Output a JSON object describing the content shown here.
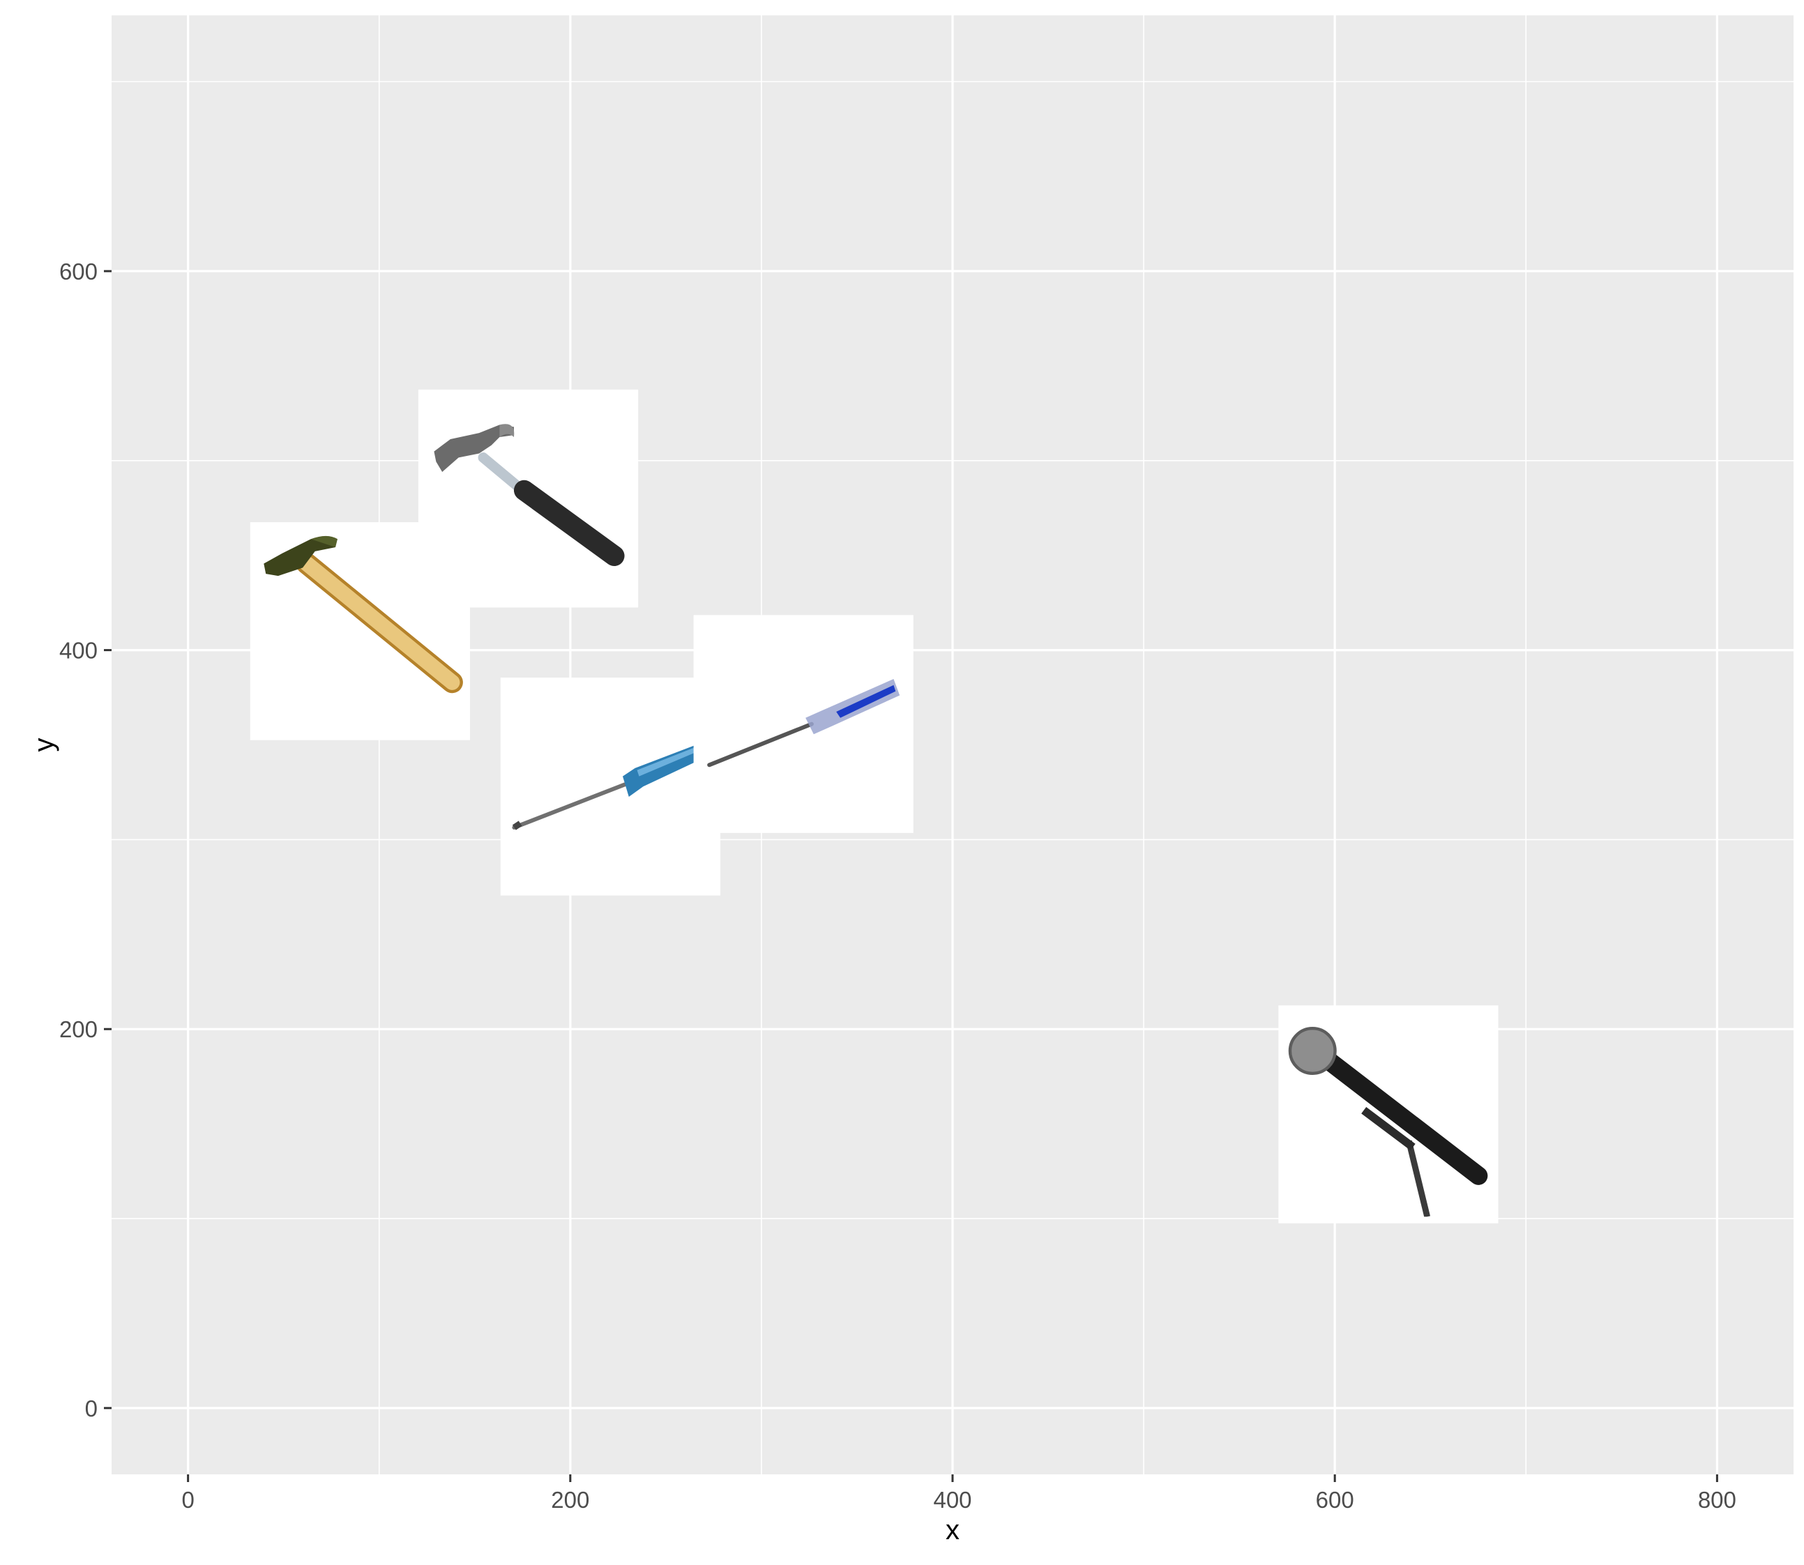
{
  "chart_data": {
    "type": "scatter",
    "xlabel": "x",
    "ylabel": "y",
    "xlim": [
      -40,
      840
    ],
    "ylim": [
      -35,
      735
    ],
    "x_ticks": [
      0,
      200,
      400,
      600,
      800
    ],
    "y_ticks": [
      0,
      200,
      400,
      600
    ],
    "x_tick_labels": [
      "0",
      "200",
      "400",
      "600",
      "800"
    ],
    "y_tick_labels": [
      "0",
      "200",
      "400",
      "600"
    ],
    "grid": true,
    "legend": "none",
    "points": [
      {
        "icon": "wooden-hammer-icon",
        "x": 90,
        "y": 410
      },
      {
        "icon": "steel-hammer-icon",
        "x": 178,
        "y": 480
      },
      {
        "icon": "blue-screwdriver-icon",
        "x": 221,
        "y": 328
      },
      {
        "icon": "clear-screwdriver-icon",
        "x": 322,
        "y": 361
      },
      {
        "icon": "microphone-icon",
        "x": 628,
        "y": 155
      }
    ],
    "image_size_units": 115,
    "colors": {
      "panel_background": "#ebebeb",
      "grid": "#ffffff",
      "tick": "#333333",
      "tile": "#ffffff"
    }
  }
}
